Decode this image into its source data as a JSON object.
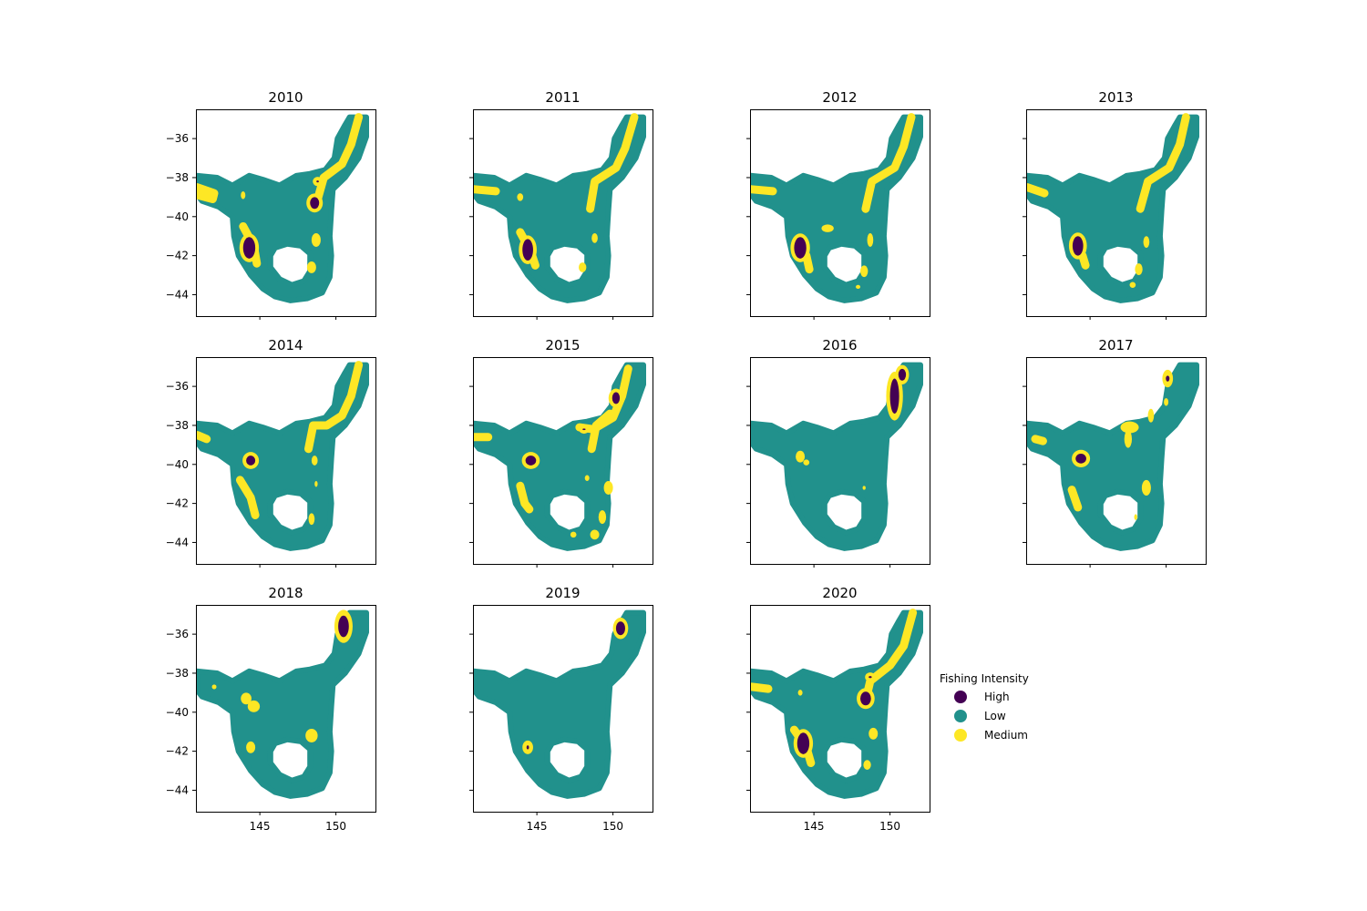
{
  "chart_data": {
    "type": "heatmap",
    "description_units": "longitude (x) / latitude (y)",
    "xlim": [
      140.8,
      152.6
    ],
    "ylim": [
      -45.1,
      -34.5
    ],
    "xticks": [
      145,
      150
    ],
    "yticks": [
      -36,
      -38,
      -40,
      -42,
      -44
    ],
    "xtick_labels": [
      "145",
      "150"
    ],
    "ytick_labels": [
      "−36",
      "−38",
      "−40",
      "−42",
      "−44"
    ],
    "colors": {
      "High": "#440154",
      "Low": "#21918c",
      "Medium": "#fde725"
    },
    "legend": {
      "title": "Fishing Intensity",
      "entries": [
        "High",
        "Low",
        "Medium"
      ]
    },
    "panels": [
      {
        "year": "2010",
        "medium": [
          {
            "shape": "path",
            "pts": [
              [
                140.9,
                -38.5
              ],
              [
                142.0,
                -38.8
              ],
              [
                141.9,
                -39.1
              ],
              [
                140.9,
                -38.9
              ]
            ]
          },
          {
            "shape": "path",
            "pts": [
              [
                151.5,
                -34.9
              ],
              [
                151.0,
                -36.3
              ],
              [
                150.4,
                -37.3
              ],
              [
                149.2,
                -38.0
              ],
              [
                148.8,
                -39.1
              ]
            ]
          },
          {
            "shape": "path",
            "pts": [
              [
                143.9,
                -40.5
              ],
              [
                144.6,
                -41.5
              ],
              [
                144.8,
                -42.4
              ]
            ]
          },
          {
            "shape": "blob",
            "x": 148.7,
            "y": -41.2,
            "rx": 0.3,
            "ry": 0.35
          },
          {
            "shape": "blob",
            "x": 148.4,
            "y": -42.6,
            "rx": 0.3,
            "ry": 0.3
          },
          {
            "shape": "blob",
            "x": 143.9,
            "y": -38.9,
            "rx": 0.15,
            "ry": 0.2
          }
        ],
        "high": [
          {
            "x": 144.3,
            "y": -41.6,
            "rx": 0.4,
            "ry": 0.55
          },
          {
            "x": 148.6,
            "y": -39.3,
            "rx": 0.3,
            "ry": 0.3
          },
          {
            "x": 148.8,
            "y": -38.2,
            "rx": 0.08,
            "ry": 0.05
          }
        ]
      },
      {
        "year": "2011",
        "medium": [
          {
            "shape": "path",
            "pts": [
              [
                140.9,
                -38.6
              ],
              [
                142.3,
                -38.7
              ]
            ]
          },
          {
            "shape": "path",
            "pts": [
              [
                151.4,
                -34.9
              ],
              [
                150.8,
                -36.5
              ],
              [
                150.2,
                -37.5
              ],
              [
                148.8,
                -38.2
              ],
              [
                148.5,
                -39.6
              ]
            ]
          },
          {
            "shape": "path",
            "pts": [
              [
                143.9,
                -40.8
              ],
              [
                144.6,
                -41.8
              ],
              [
                144.9,
                -42.5
              ]
            ]
          },
          {
            "shape": "blob",
            "x": 148.8,
            "y": -41.1,
            "rx": 0.2,
            "ry": 0.25
          },
          {
            "shape": "blob",
            "x": 148.0,
            "y": -42.6,
            "rx": 0.25,
            "ry": 0.25
          },
          {
            "shape": "blob",
            "x": 143.9,
            "y": -39.0,
            "rx": 0.2,
            "ry": 0.2
          }
        ],
        "high": [
          {
            "x": 144.4,
            "y": -41.7,
            "rx": 0.35,
            "ry": 0.55
          }
        ]
      },
      {
        "year": "2012",
        "medium": [
          {
            "shape": "path",
            "pts": [
              [
                140.9,
                -38.6
              ],
              [
                142.3,
                -38.7
              ]
            ]
          },
          {
            "shape": "path",
            "pts": [
              [
                151.4,
                -34.9
              ],
              [
                150.9,
                -36.4
              ],
              [
                150.3,
                -37.5
              ],
              [
                148.8,
                -38.2
              ],
              [
                148.4,
                -39.6
              ]
            ]
          },
          {
            "shape": "path",
            "pts": [
              [
                143.9,
                -41.2
              ],
              [
                144.5,
                -42.0
              ],
              [
                144.7,
                -42.7
              ]
            ]
          },
          {
            "shape": "blob",
            "x": 145.9,
            "y": -40.6,
            "rx": 0.4,
            "ry": 0.2
          },
          {
            "shape": "blob",
            "x": 148.7,
            "y": -41.2,
            "rx": 0.2,
            "ry": 0.35
          },
          {
            "shape": "blob",
            "x": 148.3,
            "y": -42.8,
            "rx": 0.25,
            "ry": 0.3
          },
          {
            "shape": "blob",
            "x": 147.9,
            "y": -43.6,
            "rx": 0.15,
            "ry": 0.1
          }
        ],
        "high": [
          {
            "x": 144.1,
            "y": -41.6,
            "rx": 0.4,
            "ry": 0.55
          }
        ]
      },
      {
        "year": "2013",
        "medium": [
          {
            "shape": "path",
            "pts": [
              [
                140.9,
                -38.5
              ],
              [
                142.0,
                -38.8
              ]
            ]
          },
          {
            "shape": "path",
            "pts": [
              [
                151.3,
                -34.9
              ],
              [
                150.9,
                -36.3
              ],
              [
                150.2,
                -37.5
              ],
              [
                148.8,
                -38.2
              ],
              [
                148.3,
                -39.6
              ]
            ]
          },
          {
            "shape": "path",
            "pts": [
              [
                143.9,
                -41.3
              ],
              [
                144.5,
                -42.0
              ],
              [
                144.7,
                -42.5
              ]
            ]
          },
          {
            "shape": "blob",
            "x": 148.7,
            "y": -41.3,
            "rx": 0.2,
            "ry": 0.3
          },
          {
            "shape": "blob",
            "x": 148.2,
            "y": -42.7,
            "rx": 0.25,
            "ry": 0.3
          },
          {
            "shape": "blob",
            "x": 147.8,
            "y": -43.5,
            "rx": 0.2,
            "ry": 0.15
          }
        ],
        "high": [
          {
            "x": 144.2,
            "y": -41.5,
            "rx": 0.35,
            "ry": 0.5
          }
        ]
      },
      {
        "year": "2014",
        "medium": [
          {
            "shape": "path",
            "pts": [
              [
                140.9,
                -38.5
              ],
              [
                141.5,
                -38.7
              ]
            ]
          },
          {
            "shape": "path",
            "pts": [
              [
                151.5,
                -34.9
              ],
              [
                151.0,
                -36.5
              ],
              [
                150.4,
                -37.5
              ],
              [
                149.4,
                -38.0
              ],
              [
                148.5,
                -38.0
              ],
              [
                148.2,
                -39.2
              ]
            ]
          },
          {
            "shape": "path",
            "pts": [
              [
                143.7,
                -40.8
              ],
              [
                144.4,
                -41.7
              ],
              [
                144.7,
                -42.6
              ]
            ]
          },
          {
            "shape": "blob",
            "x": 148.6,
            "y": -39.8,
            "rx": 0.2,
            "ry": 0.25
          },
          {
            "shape": "blob",
            "x": 148.4,
            "y": -42.8,
            "rx": 0.2,
            "ry": 0.3
          },
          {
            "shape": "blob",
            "x": 148.7,
            "y": -41.0,
            "rx": 0.1,
            "ry": 0.15
          }
        ],
        "high": [
          {
            "x": 144.4,
            "y": -39.8,
            "rx": 0.3,
            "ry": 0.25
          }
        ]
      },
      {
        "year": "2015",
        "medium": [
          {
            "shape": "path",
            "pts": [
              [
                140.9,
                -38.6
              ],
              [
                141.8,
                -38.6
              ]
            ]
          },
          {
            "shape": "path",
            "pts": [
              [
                151.0,
                -35.1
              ],
              [
                150.6,
                -36.5
              ],
              [
                150.0,
                -37.6
              ],
              [
                148.7,
                -38.2
              ],
              [
                147.8,
                -38.1
              ]
            ]
          },
          {
            "shape": "path",
            "pts": [
              [
                149.8,
                -37.4
              ],
              [
                148.9,
                -38.0
              ],
              [
                148.6,
                -39.2
              ]
            ]
          },
          {
            "shape": "path",
            "pts": [
              [
                143.9,
                -41.1
              ],
              [
                144.2,
                -42.0
              ],
              [
                144.5,
                -42.3
              ]
            ]
          },
          {
            "shape": "blob",
            "x": 149.7,
            "y": -41.2,
            "rx": 0.3,
            "ry": 0.35
          },
          {
            "shape": "blob",
            "x": 149.3,
            "y": -42.7,
            "rx": 0.25,
            "ry": 0.35
          },
          {
            "shape": "blob",
            "x": 148.8,
            "y": -43.6,
            "rx": 0.3,
            "ry": 0.25
          },
          {
            "shape": "blob",
            "x": 147.4,
            "y": -43.6,
            "rx": 0.2,
            "ry": 0.15
          },
          {
            "shape": "blob",
            "x": 148.3,
            "y": -40.7,
            "rx": 0.15,
            "ry": 0.15
          }
        ],
        "high": [
          {
            "x": 144.6,
            "y": -39.8,
            "rx": 0.35,
            "ry": 0.25
          },
          {
            "x": 150.2,
            "y": -36.6,
            "rx": 0.25,
            "ry": 0.3
          },
          {
            "x": 148.1,
            "y": -38.2,
            "rx": 0.1,
            "ry": 0.04
          }
        ]
      },
      {
        "year": "2016",
        "medium": [
          {
            "shape": "blob",
            "x": 144.1,
            "y": -39.6,
            "rx": 0.3,
            "ry": 0.3
          },
          {
            "shape": "blob",
            "x": 144.5,
            "y": -39.9,
            "rx": 0.2,
            "ry": 0.15
          },
          {
            "shape": "blob",
            "x": 148.3,
            "y": -41.2,
            "rx": 0.1,
            "ry": 0.1
          }
        ],
        "high": [
          {
            "x": 150.3,
            "y": -36.5,
            "rx": 0.3,
            "ry": 0.9
          },
          {
            "x": 150.8,
            "y": -35.4,
            "rx": 0.25,
            "ry": 0.3
          }
        ],
        "medium_rings": [
          {
            "x": 150.3,
            "y": -36.5,
            "rx": 0.55,
            "ry": 1.25
          },
          {
            "x": 150.8,
            "y": -35.4,
            "rx": 0.45,
            "ry": 0.5
          }
        ]
      },
      {
        "year": "2017",
        "medium": [
          {
            "shape": "path",
            "pts": [
              [
                141.4,
                -38.7
              ],
              [
                141.9,
                -38.8
              ]
            ]
          },
          {
            "shape": "blob",
            "x": 147.6,
            "y": -38.1,
            "rx": 0.6,
            "ry": 0.3
          },
          {
            "shape": "blob",
            "x": 147.5,
            "y": -38.7,
            "rx": 0.25,
            "ry": 0.45
          },
          {
            "shape": "blob",
            "x": 149.0,
            "y": -37.5,
            "rx": 0.2,
            "ry": 0.35
          },
          {
            "shape": "blob",
            "x": 150.0,
            "y": -36.8,
            "rx": 0.15,
            "ry": 0.2
          },
          {
            "shape": "path",
            "pts": [
              [
                143.8,
                -41.3
              ],
              [
                144.2,
                -42.2
              ]
            ]
          },
          {
            "shape": "blob",
            "x": 148.7,
            "y": -41.2,
            "rx": 0.3,
            "ry": 0.4
          },
          {
            "shape": "blob",
            "x": 148.0,
            "y": -42.7,
            "rx": 0.1,
            "ry": 0.15
          }
        ],
        "high": [
          {
            "x": 144.4,
            "y": -39.7,
            "rx": 0.35,
            "ry": 0.25
          },
          {
            "x": 150.1,
            "y": -35.6,
            "rx": 0.12,
            "ry": 0.15
          }
        ],
        "medium_rings": [
          {
            "x": 144.4,
            "y": -39.7,
            "rx": 0.6,
            "ry": 0.45
          },
          {
            "x": 150.1,
            "y": -35.6,
            "rx": 0.35,
            "ry": 0.45
          }
        ]
      },
      {
        "year": "2018",
        "medium": [
          {
            "shape": "blob",
            "x": 144.1,
            "y": -39.3,
            "rx": 0.35,
            "ry": 0.3
          },
          {
            "shape": "blob",
            "x": 144.6,
            "y": -39.7,
            "rx": 0.4,
            "ry": 0.3
          },
          {
            "shape": "blob",
            "x": 142.0,
            "y": -38.7,
            "rx": 0.15,
            "ry": 0.12
          },
          {
            "shape": "blob",
            "x": 148.4,
            "y": -41.2,
            "rx": 0.4,
            "ry": 0.35
          },
          {
            "shape": "blob",
            "x": 144.4,
            "y": -41.8,
            "rx": 0.3,
            "ry": 0.3
          }
        ],
        "high": [
          {
            "x": 150.5,
            "y": -35.6,
            "rx": 0.35,
            "ry": 0.55
          }
        ],
        "medium_rings": [
          {
            "x": 150.5,
            "y": -35.6,
            "rx": 0.6,
            "ry": 0.85
          }
        ]
      },
      {
        "year": "2019",
        "medium": [],
        "high": [
          {
            "x": 150.5,
            "y": -35.7,
            "rx": 0.3,
            "ry": 0.35
          },
          {
            "x": 144.4,
            "y": -41.8,
            "rx": 0.08,
            "ry": 0.1
          }
        ],
        "medium_rings": [
          {
            "x": 150.5,
            "y": -35.7,
            "rx": 0.5,
            "ry": 0.55
          },
          {
            "x": 144.4,
            "y": -41.8,
            "rx": 0.35,
            "ry": 0.35
          }
        ]
      },
      {
        "year": "2020",
        "medium": [
          {
            "shape": "path",
            "pts": [
              [
                140.9,
                -38.7
              ],
              [
                142.0,
                -38.8
              ]
            ]
          },
          {
            "shape": "path",
            "pts": [
              [
                151.5,
                -34.9
              ],
              [
                150.9,
                -36.6
              ],
              [
                150.0,
                -37.6
              ],
              [
                148.7,
                -38.4
              ],
              [
                148.4,
                -39.4
              ]
            ]
          },
          {
            "shape": "path",
            "pts": [
              [
                143.7,
                -40.9
              ],
              [
                144.5,
                -41.8
              ],
              [
                144.8,
                -42.6
              ]
            ]
          },
          {
            "shape": "blob",
            "x": 148.9,
            "y": -41.1,
            "rx": 0.3,
            "ry": 0.3
          },
          {
            "shape": "blob",
            "x": 148.5,
            "y": -42.7,
            "rx": 0.25,
            "ry": 0.25
          },
          {
            "shape": "blob",
            "x": 144.1,
            "y": -39.0,
            "rx": 0.15,
            "ry": 0.15
          }
        ],
        "high": [
          {
            "x": 144.3,
            "y": -41.6,
            "rx": 0.4,
            "ry": 0.55
          },
          {
            "x": 148.4,
            "y": -39.3,
            "rx": 0.35,
            "ry": 0.35
          },
          {
            "x": 148.7,
            "y": -38.2,
            "rx": 0.1,
            "ry": 0.05
          }
        ]
      }
    ]
  }
}
